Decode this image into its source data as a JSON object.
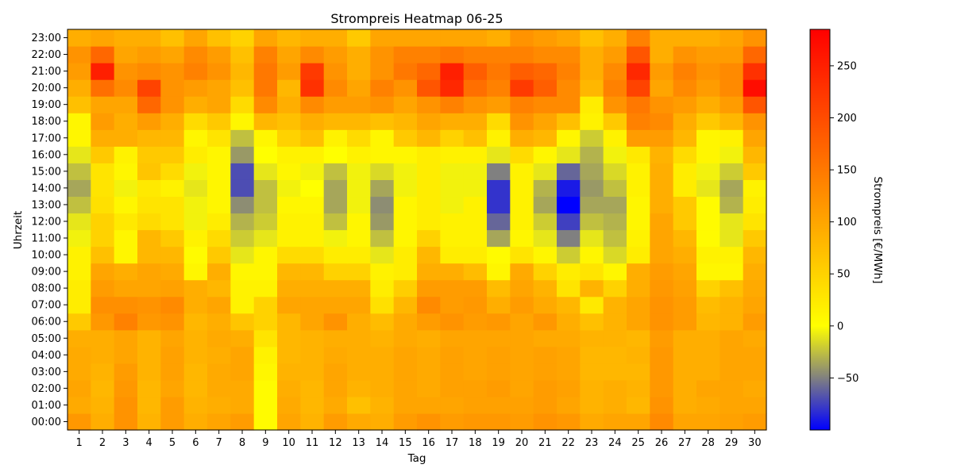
{
  "chart_data": {
    "type": "heatmap",
    "title": "Strompreis Heatmap 06-25",
    "xlabel": "Tag",
    "ylabel": "Uhrzeit",
    "colorbar_label": "Strompreis [€/MWh]",
    "x": [
      1,
      2,
      3,
      4,
      5,
      6,
      7,
      8,
      9,
      10,
      11,
      12,
      13,
      14,
      15,
      16,
      17,
      18,
      19,
      20,
      21,
      22,
      23,
      24,
      25,
      26,
      27,
      28,
      29,
      30
    ],
    "y": [
      "00:00",
      "01:00",
      "02:00",
      "03:00",
      "04:00",
      "05:00",
      "06:00",
      "07:00",
      "08:00",
      "09:00",
      "10:00",
      "11:00",
      "12:00",
      "13:00",
      "14:00",
      "15:00",
      "16:00",
      "17:00",
      "18:00",
      "19:00",
      "20:00",
      "21:00",
      "22:00",
      "23:00"
    ],
    "clim": [
      -100,
      285
    ],
    "colorbar_ticks": [
      -50,
      0,
      50,
      100,
      150,
      200,
      250
    ],
    "colormap": [
      "#0000ff",
      "#808080",
      "#ffff00",
      "#ffa500",
      "#ff0000"
    ],
    "values": [
      [
        115,
        90,
        120,
        85,
        110,
        90,
        100,
        110,
        5,
        100,
        85,
        110,
        95,
        90,
        110,
        120,
        110,
        115,
        115,
        110,
        120,
        115,
        95,
        100,
        100,
        130,
        100,
        100,
        105,
        110
      ],
      [
        95,
        85,
        120,
        80,
        110,
        85,
        90,
        95,
        5,
        95,
        80,
        95,
        70,
        85,
        100,
        100,
        100,
        105,
        105,
        105,
        110,
        100,
        85,
        90,
        80,
        120,
        90,
        95,
        100,
        100
      ],
      [
        100,
        80,
        115,
        80,
        100,
        80,
        95,
        95,
        5,
        90,
        80,
        100,
        85,
        90,
        100,
        95,
        105,
        105,
        110,
        100,
        110,
        105,
        85,
        90,
        85,
        115,
        90,
        100,
        100,
        95
      ],
      [
        95,
        85,
        110,
        85,
        105,
        80,
        95,
        100,
        10,
        85,
        85,
        100,
        90,
        90,
        100,
        95,
        105,
        100,
        105,
        100,
        105,
        100,
        80,
        80,
        80,
        115,
        90,
        90,
        100,
        100
      ],
      [
        95,
        90,
        100,
        85,
        105,
        85,
        90,
        100,
        15,
        80,
        85,
        95,
        90,
        90,
        100,
        95,
        105,
        100,
        105,
        100,
        105,
        100,
        80,
        80,
        85,
        115,
        90,
        90,
        100,
        100
      ],
      [
        90,
        90,
        100,
        85,
        100,
        85,
        95,
        90,
        30,
        80,
        85,
        90,
        90,
        85,
        95,
        90,
        100,
        100,
        100,
        100,
        95,
        95,
        85,
        85,
        80,
        110,
        90,
        90,
        100,
        95
      ],
      [
        60,
        115,
        140,
        115,
        120,
        80,
        90,
        65,
        50,
        80,
        100,
        120,
        90,
        75,
        95,
        110,
        120,
        110,
        115,
        100,
        115,
        90,
        70,
        85,
        100,
        120,
        110,
        80,
        85,
        110
      ],
      [
        20,
        125,
        125,
        120,
        130,
        90,
        100,
        15,
        50,
        100,
        100,
        100,
        100,
        35,
        80,
        130,
        110,
        115,
        90,
        110,
        95,
        80,
        25,
        85,
        100,
        120,
        110,
        75,
        85,
        100
      ],
      [
        20,
        110,
        100,
        100,
        105,
        90,
        80,
        15,
        15,
        90,
        90,
        90,
        90,
        20,
        55,
        110,
        110,
        110,
        75,
        100,
        85,
        30,
        85,
        50,
        90,
        115,
        105,
        50,
        70,
        95
      ],
      [
        15,
        100,
        90,
        100,
        95,
        10,
        90,
        10,
        10,
        80,
        80,
        50,
        50,
        15,
        20,
        90,
        90,
        75,
        10,
        95,
        50,
        20,
        30,
        10,
        90,
        110,
        100,
        10,
        10,
        90
      ],
      [
        15,
        70,
        10,
        80,
        80,
        5,
        60,
        -10,
        10,
        40,
        40,
        20,
        20,
        -10,
        20,
        80,
        20,
        20,
        5,
        30,
        10,
        -20,
        10,
        -15,
        20,
        100,
        90,
        15,
        15,
        80
      ],
      [
        -5,
        50,
        10,
        80,
        60,
        15,
        40,
        -20,
        -10,
        15,
        15,
        -5,
        10,
        -25,
        10,
        50,
        15,
        15,
        -35,
        10,
        -10,
        -50,
        -10,
        -25,
        15,
        100,
        80,
        5,
        -10,
        60
      ],
      [
        -10,
        50,
        25,
        40,
        30,
        -5,
        20,
        -30,
        -20,
        15,
        15,
        -25,
        10,
        -40,
        10,
        20,
        15,
        15,
        -60,
        15,
        -20,
        -75,
        -25,
        -30,
        10,
        100,
        60,
        5,
        -10,
        30
      ],
      [
        -25,
        35,
        10,
        30,
        30,
        -5,
        10,
        -45,
        -25,
        10,
        10,
        -35,
        -5,
        -45,
        10,
        20,
        -5,
        15,
        -80,
        15,
        -35,
        -100,
        -35,
        -35,
        10,
        90,
        60,
        5,
        -30,
        20
      ],
      [
        -35,
        30,
        -5,
        25,
        15,
        -10,
        10,
        -70,
        -25,
        -5,
        0,
        -35,
        -5,
        -35,
        -5,
        20,
        -5,
        -5,
        -80,
        15,
        -30,
        -90,
        -40,
        -25,
        15,
        90,
        20,
        -10,
        -35,
        15
      ],
      [
        -25,
        30,
        10,
        65,
        40,
        -5,
        10,
        -70,
        -10,
        10,
        -5,
        -25,
        -5,
        -15,
        -5,
        20,
        -5,
        -5,
        -50,
        15,
        -10,
        -60,
        -35,
        -15,
        15,
        90,
        20,
        -5,
        -20,
        60
      ],
      [
        -10,
        60,
        15,
        60,
        60,
        20,
        10,
        -40,
        0,
        15,
        15,
        0,
        15,
        10,
        10,
        20,
        15,
        15,
        -10,
        40,
        10,
        -10,
        -30,
        -5,
        25,
        85,
        40,
        10,
        -5,
        80
      ],
      [
        10,
        90,
        90,
        80,
        80,
        10,
        30,
        -25,
        10,
        50,
        70,
        15,
        40,
        10,
        60,
        80,
        50,
        70,
        15,
        90,
        80,
        10,
        -20,
        15,
        110,
        110,
        80,
        10,
        15,
        100
      ],
      [
        10,
        110,
        90,
        110,
        90,
        40,
        60,
        10,
        80,
        70,
        90,
        80,
        80,
        70,
        80,
        100,
        90,
        90,
        40,
        120,
        100,
        70,
        15,
        60,
        140,
        130,
        90,
        60,
        80,
        120
      ],
      [
        70,
        100,
        100,
        170,
        120,
        90,
        100,
        40,
        130,
        90,
        130,
        110,
        110,
        120,
        100,
        120,
        140,
        120,
        110,
        140,
        130,
        130,
        20,
        120,
        150,
        120,
        110,
        90,
        110,
        190
      ],
      [
        90,
        160,
        130,
        210,
        120,
        110,
        100,
        70,
        150,
        80,
        230,
        130,
        100,
        140,
        120,
        190,
        240,
        160,
        140,
        220,
        180,
        130,
        80,
        140,
        210,
        100,
        130,
        110,
        130,
        270
      ],
      [
        110,
        250,
        120,
        130,
        120,
        140,
        120,
        80,
        150,
        110,
        220,
        120,
        90,
        120,
        150,
        170,
        250,
        180,
        150,
        180,
        170,
        140,
        90,
        130,
        240,
        110,
        140,
        120,
        130,
        230
      ],
      [
        120,
        170,
        100,
        110,
        100,
        130,
        110,
        70,
        140,
        100,
        130,
        110,
        90,
        120,
        140,
        140,
        150,
        140,
        140,
        140,
        130,
        130,
        90,
        110,
        190,
        90,
        120,
        110,
        110,
        170
      ],
      [
        90,
        100,
        90,
        90,
        70,
        100,
        70,
        50,
        100,
        80,
        90,
        90,
        60,
        100,
        100,
        100,
        100,
        100,
        90,
        120,
        110,
        100,
        70,
        90,
        140,
        90,
        90,
        90,
        100,
        120
      ]
    ]
  }
}
